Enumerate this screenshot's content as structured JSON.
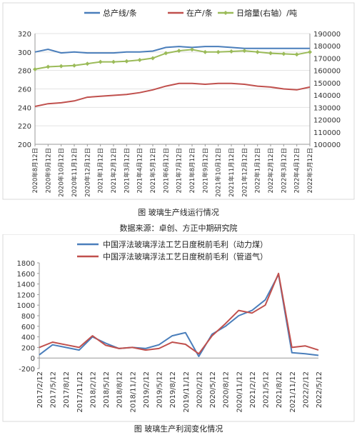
{
  "chart_data": [
    {
      "type": "line",
      "title": "",
      "legend": {
        "placement": "top"
      },
      "x": [
        "2020年8月12日",
        "2020年9月12日",
        "2020年10月12日",
        "2020年11月12日",
        "2020年12月12日",
        "2021年1月12日",
        "2021年2月12日",
        "2021年3月12日",
        "2021年4月12日",
        "2021年5月12日",
        "2021年6月12日",
        "2021年7月12日",
        "2021年8月12日",
        "2021年9月12日",
        "2021年10月12日",
        "2021年11月12日",
        "2021年12月12日",
        "2022年1月12日",
        "2022年2月12日",
        "2022年3月12日",
        "2022年4月12日",
        "2022年5月12日"
      ],
      "y_left": {
        "ylim": [
          200,
          320
        ],
        "ticks": [
          200,
          220,
          240,
          260,
          280,
          300,
          320
        ]
      },
      "y_right": {
        "ylim": [
          100000,
          190000
        ],
        "ticks": [
          100000,
          110000,
          120000,
          130000,
          140000,
          150000,
          160000,
          170000,
          180000,
          190000
        ]
      },
      "series": [
        {
          "name": "总产线/条",
          "axis": "left",
          "color": "#4a7ebb",
          "marker": "none",
          "values": [
            300,
            303,
            299,
            300,
            299,
            299,
            299,
            300,
            300,
            301,
            305,
            306,
            305,
            306,
            306,
            305,
            304,
            304,
            304,
            304,
            304,
            304
          ]
        },
        {
          "name": "在产/条",
          "axis": "left",
          "color": "#c0504d",
          "marker": "none",
          "values": [
            241,
            244,
            245,
            247,
            251,
            252,
            253,
            254,
            256,
            259,
            263,
            266,
            266,
            265,
            266,
            266,
            265,
            263,
            262,
            260,
            259,
            262
          ]
        },
        {
          "name": "日熔量(右轴）/吨",
          "axis": "right",
          "color": "#9bbb59",
          "marker": "diamond",
          "values": [
            161000,
            163000,
            163500,
            164000,
            165500,
            167000,
            167000,
            167500,
            168500,
            170000,
            174000,
            176000,
            177000,
            175000,
            175000,
            175500,
            176000,
            175000,
            174000,
            173500,
            173000,
            175000
          ]
        }
      ]
    },
    {
      "type": "line",
      "title": "",
      "legend": {
        "placement": "top"
      },
      "x": [
        "2017/2/12",
        "2017/5/12",
        "2017/8/12",
        "2017/11/12",
        "2018/2/12",
        "2018/5/12",
        "2018/8/12",
        "2018/11/12",
        "2019/2/12",
        "2019/5/12",
        "2019/8/12",
        "2019/11/12",
        "2020/2/12",
        "2020/5/12",
        "2020/8/12",
        "2020/11/12",
        "2021/2/12",
        "2021/5/12",
        "2021/8/12",
        "2021/11/12",
        "2022/2/12",
        "2022/5/12"
      ],
      "ylim": [
        -200,
        1800
      ],
      "yticks": [
        -200,
        0,
        200,
        400,
        600,
        800,
        1000,
        1200,
        1400,
        1600,
        1800
      ],
      "series": [
        {
          "name": "中国浮法玻璃浮法工艺日度税前毛利（动力煤）",
          "color": "#4a7ebb",
          "values": [
            60,
            250,
            200,
            150,
            400,
            280,
            180,
            200,
            180,
            250,
            420,
            480,
            30,
            450,
            600,
            800,
            900,
            1100,
            1580,
            100,
            80,
            50
          ]
        },
        {
          "name": "中国浮法玻璃浮法工艺日度税前毛利（管道气）",
          "color": "#c0504d",
          "values": [
            200,
            300,
            250,
            200,
            420,
            240,
            180,
            200,
            150,
            180,
            300,
            260,
            80,
            420,
            650,
            900,
            850,
            1000,
            1600,
            200,
            230,
            150
          ]
        }
      ]
    }
  ],
  "captions": {
    "fig1": "图    玻璃生产线运行情况",
    "source": "数据来源：卓创、方正中期研究院",
    "fig2": "图    玻璃生产利润变化情况"
  }
}
